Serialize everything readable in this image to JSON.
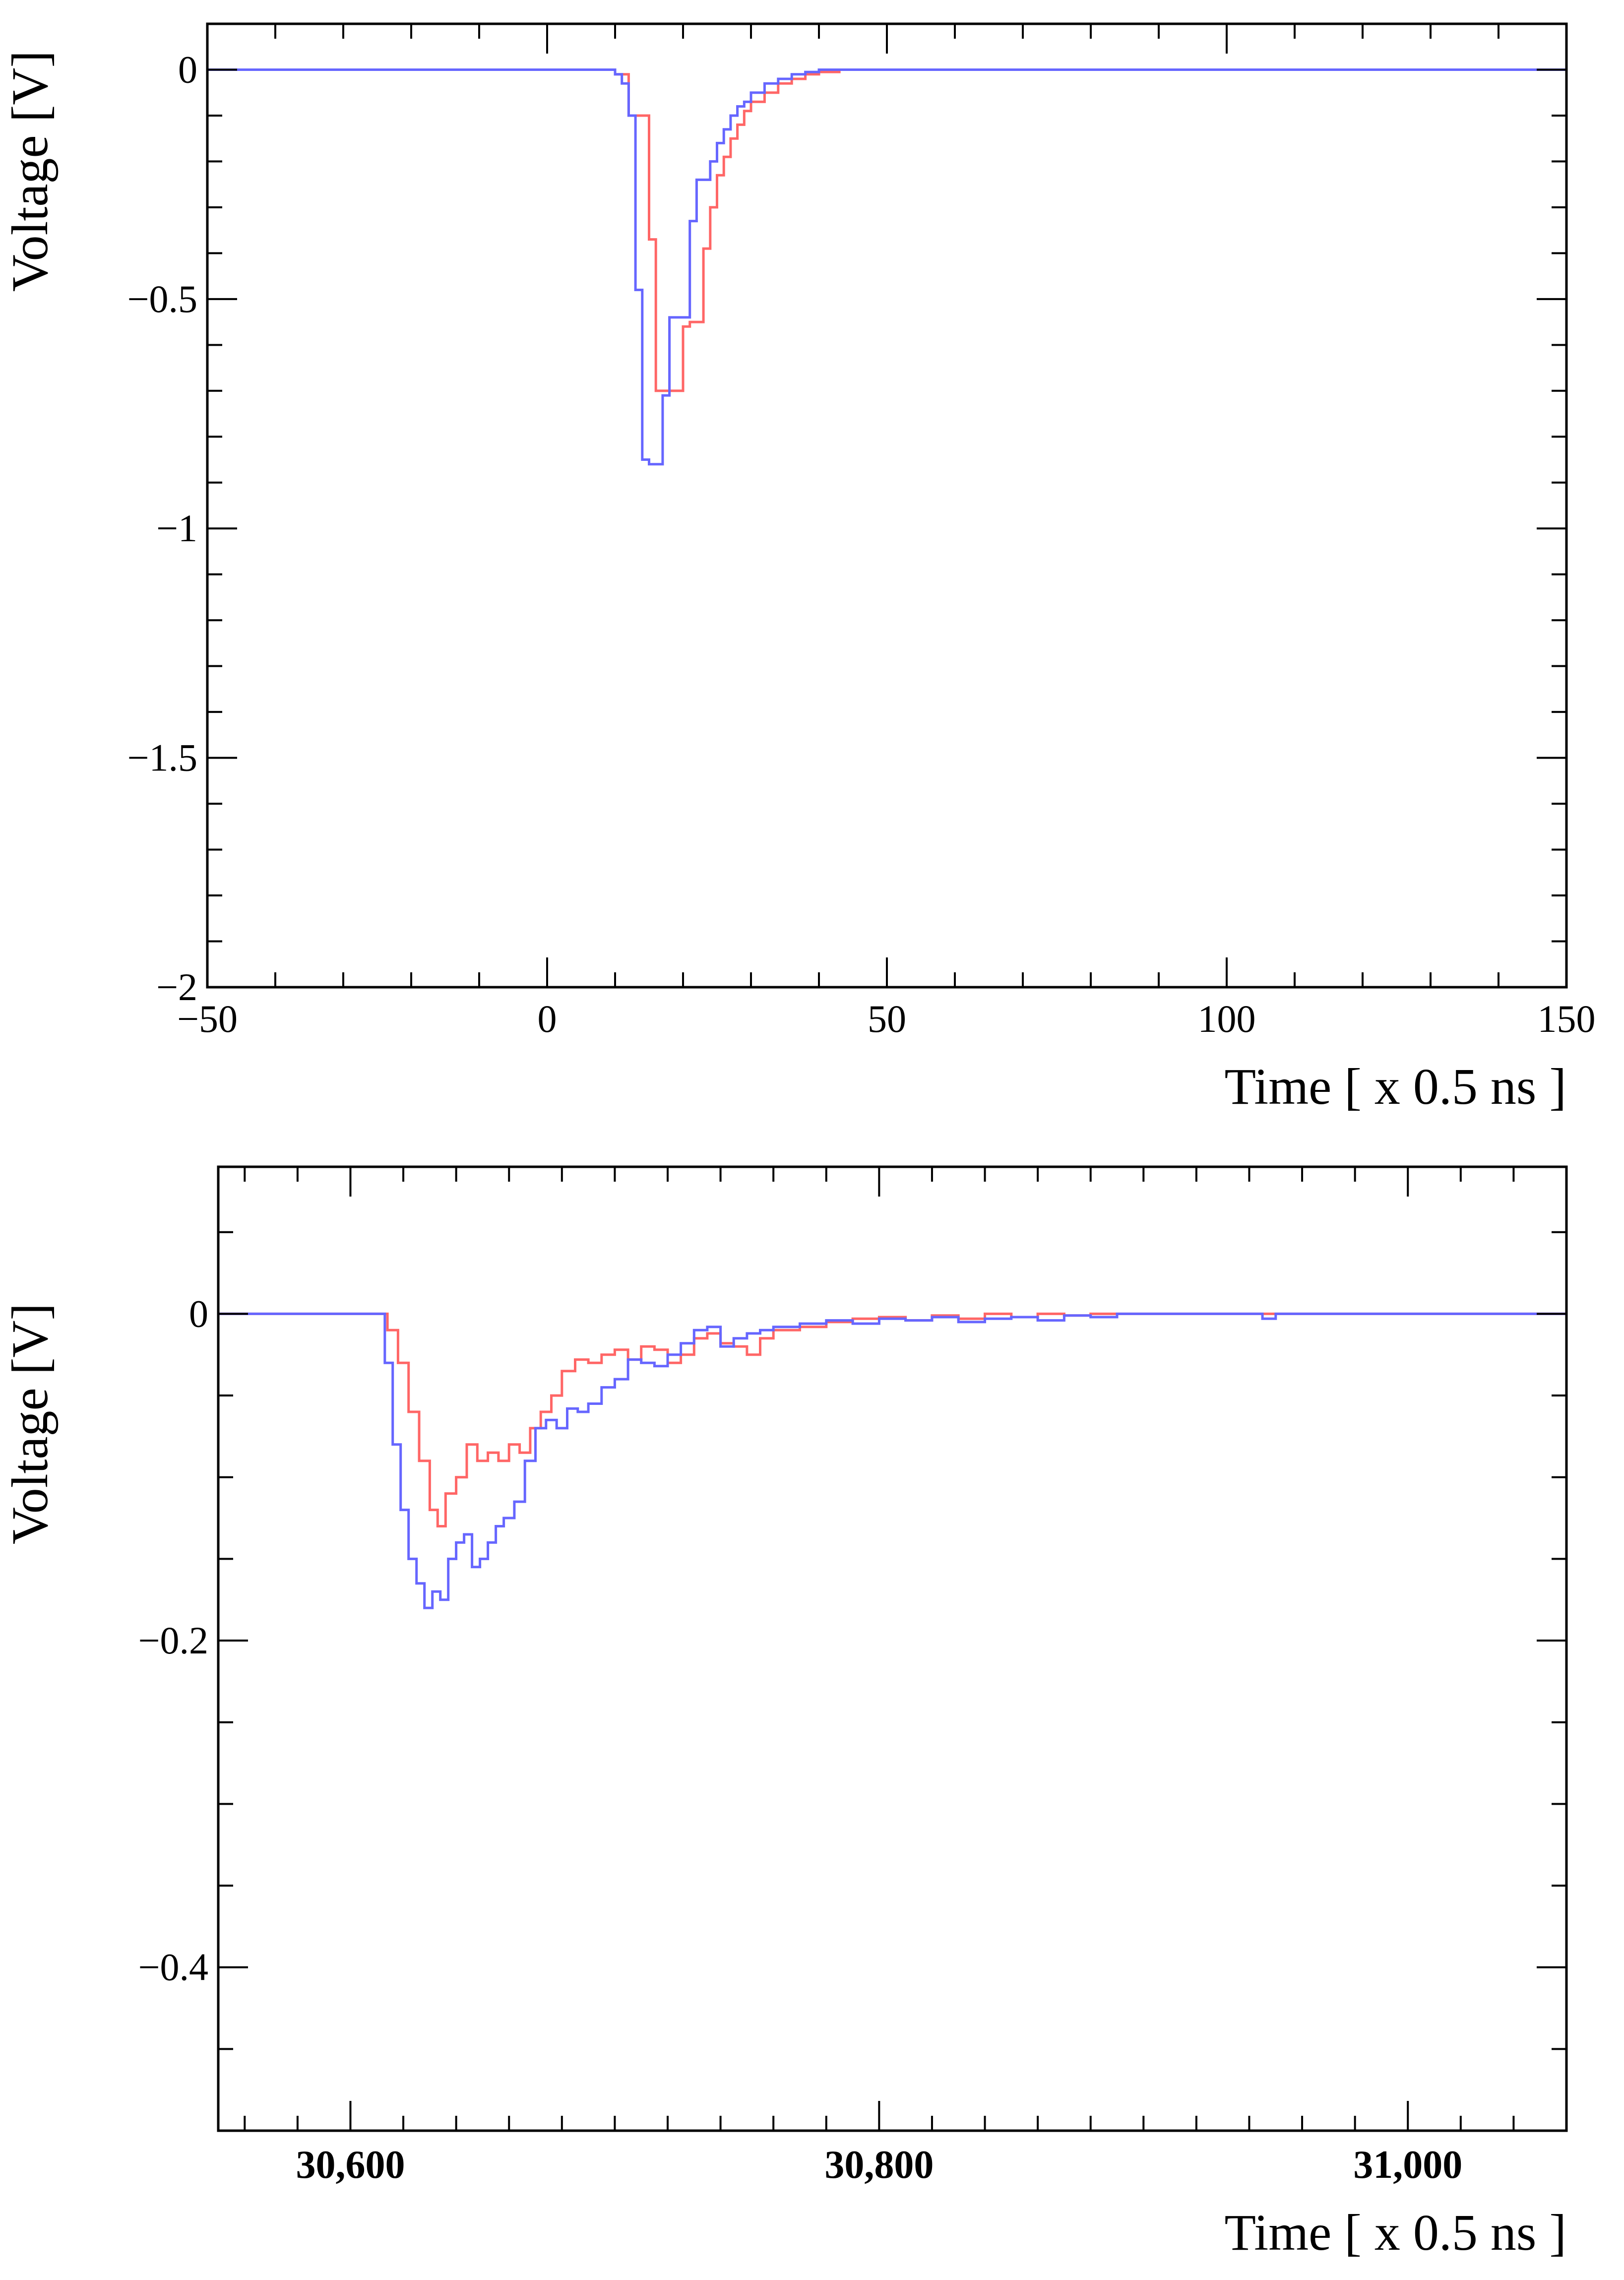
{
  "chart_data": [
    {
      "type": "line",
      "title": "",
      "xlabel": "Time [ x 0.5 ns ]",
      "ylabel": "Voltage [V]",
      "xlim": [
        -50,
        150
      ],
      "ylim": [
        -2,
        0.1
      ],
      "x_ticks": [
        {
          "value": -50,
          "label": "−50"
        },
        {
          "value": 0,
          "label": "0"
        },
        {
          "value": 50,
          "label": "50"
        },
        {
          "value": 100,
          "label": "100"
        },
        {
          "value": 150,
          "label": "150"
        }
      ],
      "y_ticks": [
        {
          "value": 0,
          "label": "0"
        },
        {
          "value": -0.5,
          "label": "−0.5"
        },
        {
          "value": -1,
          "label": "−1"
        },
        {
          "value": -1.5,
          "label": "−1.5"
        },
        {
          "value": -2,
          "label": "−2"
        }
      ],
      "x_minor_step": 10,
      "y_minor_step": 0.1,
      "step": true,
      "series": [
        {
          "color": "#ff6666",
          "x": [
            -50,
            8,
            10,
            12,
            15,
            16,
            20,
            21,
            23,
            24,
            25,
            26,
            27,
            28,
            29,
            30,
            32,
            34,
            36,
            38,
            40,
            43,
            150
          ],
          "y": [
            0,
            0,
            -0.01,
            -0.1,
            -0.37,
            -0.7,
            -0.56,
            -0.55,
            -0.39,
            -0.3,
            -0.23,
            -0.19,
            -0.15,
            -0.12,
            -0.09,
            -0.07,
            -0.05,
            -0.03,
            -0.02,
            -0.01,
            -0.005,
            0,
            0
          ]
        },
        {
          "color": "#6666ff",
          "x": [
            -50,
            8,
            10,
            11,
            12,
            13,
            14,
            15,
            17,
            18,
            21,
            22,
            24,
            25,
            26,
            27,
            28,
            29,
            30,
            32,
            34,
            36,
            38,
            40,
            43,
            150
          ],
          "y": [
            0,
            0,
            -0.01,
            -0.03,
            -0.1,
            -0.48,
            -0.85,
            -0.86,
            -0.71,
            -0.54,
            -0.33,
            -0.24,
            -0.2,
            -0.16,
            -0.13,
            -0.1,
            -0.08,
            -0.07,
            -0.05,
            -0.03,
            -0.02,
            -0.01,
            -0.005,
            0,
            0,
            0
          ]
        }
      ]
    },
    {
      "type": "line",
      "title": "",
      "xlabel": "Time [ x 0.5 ns ]",
      "ylabel": "Voltage [V]",
      "xlim": [
        30550,
        31060
      ],
      "ylim": [
        -0.5,
        0.09
      ],
      "x_ticks": [
        {
          "value": 30600,
          "label": "30,600"
        },
        {
          "value": 30800,
          "label": "30,800"
        },
        {
          "value": 31000,
          "label": "31,000"
        }
      ],
      "y_ticks": [
        {
          "value": 0,
          "label": "0"
        },
        {
          "value": -0.2,
          "label": "−0.2"
        },
        {
          "value": -0.4,
          "label": "−0.4"
        }
      ],
      "x_minor_step": 20,
      "y_minor_step": 0.05,
      "step": true,
      "series": [
        {
          "color": "#ff6666",
          "x": [
            30550,
            30610,
            30614,
            30618,
            30622,
            30626,
            30630,
            30633,
            30636,
            30640,
            30644,
            30648,
            30652,
            30656,
            30660,
            30664,
            30668,
            30672,
            30676,
            30680,
            30685,
            30690,
            30695,
            30700,
            30705,
            30710,
            30715,
            30720,
            30725,
            30730,
            30735,
            30740,
            30745,
            30750,
            30755,
            30760,
            30770,
            30780,
            30790,
            30800,
            30810,
            30820,
            30830,
            30840,
            30850,
            30860,
            30870,
            30880,
            30890,
            30900,
            31060
          ],
          "y": [
            0,
            0,
            -0.01,
            -0.03,
            -0.06,
            -0.09,
            -0.12,
            -0.13,
            -0.11,
            -0.1,
            -0.08,
            -0.09,
            -0.085,
            -0.09,
            -0.08,
            -0.085,
            -0.07,
            -0.06,
            -0.05,
            -0.035,
            -0.028,
            -0.03,
            -0.025,
            -0.022,
            -0.028,
            -0.02,
            -0.022,
            -0.03,
            -0.025,
            -0.015,
            -0.012,
            -0.018,
            -0.02,
            -0.025,
            -0.015,
            -0.01,
            -0.008,
            -0.005,
            -0.003,
            -0.002,
            -0.004,
            -0.001,
            -0.003,
            0,
            -0.002,
            0,
            -0.001,
            0,
            0,
            0,
            0
          ]
        },
        {
          "color": "#6666ff",
          "x": [
            30550,
            30610,
            30613,
            30616,
            30619,
            30622,
            30625,
            30628,
            30631,
            30634,
            30637,
            30640,
            30643,
            30646,
            30649,
            30652,
            30655,
            30658,
            30662,
            30666,
            30670,
            30674,
            30678,
            30682,
            30686,
            30690,
            30695,
            30700,
            30705,
            30710,
            30715,
            30720,
            30725,
            30730,
            30735,
            30740,
            30745,
            30750,
            30755,
            30760,
            30770,
            30780,
            30790,
            30800,
            30810,
            30820,
            30830,
            30840,
            30850,
            30860,
            30870,
            30880,
            30890,
            30900,
            30940,
            30945,
            30950,
            31060
          ],
          "y": [
            0,
            0,
            -0.03,
            -0.08,
            -0.12,
            -0.15,
            -0.165,
            -0.18,
            -0.17,
            -0.175,
            -0.15,
            -0.14,
            -0.135,
            -0.155,
            -0.15,
            -0.14,
            -0.13,
            -0.125,
            -0.115,
            -0.09,
            -0.07,
            -0.065,
            -0.07,
            -0.058,
            -0.06,
            -0.055,
            -0.045,
            -0.04,
            -0.028,
            -0.03,
            -0.032,
            -0.025,
            -0.018,
            -0.01,
            -0.008,
            -0.02,
            -0.015,
            -0.012,
            -0.01,
            -0.008,
            -0.006,
            -0.004,
            -0.006,
            -0.003,
            -0.004,
            -0.002,
            -0.005,
            -0.003,
            -0.002,
            -0.004,
            -0.001,
            -0.002,
            0,
            0,
            0,
            -0.003,
            0,
            0
          ]
        }
      ]
    }
  ]
}
